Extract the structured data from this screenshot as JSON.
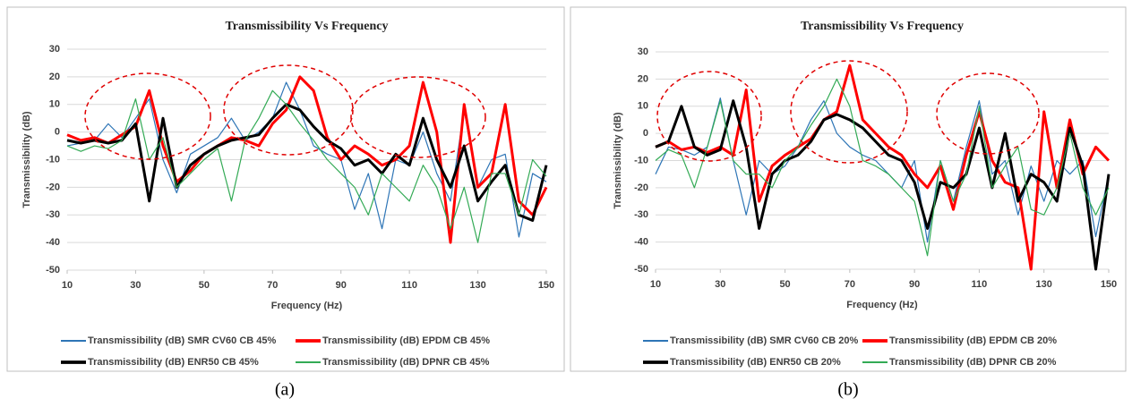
{
  "chart_data": [
    {
      "type": "line",
      "title": "Transmissibility Vs Frequency",
      "xlabel": "Frequency (Hz)",
      "ylabel": "Transmissibility (dB)",
      "caption": "(a)",
      "x": [
        10,
        14,
        18,
        22,
        26,
        30,
        34,
        38,
        42,
        46,
        50,
        54,
        58,
        62,
        66,
        70,
        74,
        78,
        82,
        86,
        90,
        94,
        98,
        102,
        106,
        110,
        114,
        118,
        122,
        126,
        130,
        134,
        138,
        142,
        146,
        150
      ],
      "xlim": [
        10,
        150
      ],
      "xticks": [
        10,
        30,
        50,
        70,
        90,
        110,
        130,
        150
      ],
      "ylim": [
        -50,
        30
      ],
      "yticks": [
        -50,
        -40,
        -30,
        -20,
        -10,
        0,
        10,
        20,
        30
      ],
      "grid": true,
      "series": [
        {
          "name": "Transmissibility (dB) SMR CV60 CB 45%",
          "color": "#2e75b6",
          "values": [
            -5,
            -4,
            -3,
            3,
            -2,
            5,
            12,
            -10,
            -22,
            -8,
            -5,
            -2,
            5,
            -3,
            0,
            5,
            18,
            8,
            -5,
            -8,
            -10,
            -28,
            -15,
            -35,
            -10,
            -12,
            0,
            -15,
            -25,
            8,
            -20,
            -10,
            -8,
            -38,
            -15,
            -18
          ]
        },
        {
          "name": "Transmissibility (dB) EPDM CB 45%",
          "color": "#ff0000",
          "values": [
            -1,
            -3,
            -2,
            -4,
            -1,
            2,
            15,
            -5,
            -18,
            -14,
            -8,
            -5,
            -2,
            -3,
            -5,
            3,
            8,
            20,
            15,
            -2,
            -10,
            -5,
            -8,
            -12,
            -10,
            -5,
            18,
            0,
            -40,
            10,
            -20,
            -15,
            10,
            -25,
            -30,
            -20
          ]
        },
        {
          "name": "Transmissibility (dB) ENR50 CB 45%",
          "color": "#000000",
          "values": [
            -3,
            -4,
            -3,
            -4,
            -3,
            3,
            -25,
            5,
            -20,
            -12,
            -8,
            -5,
            -3,
            -2,
            -1,
            5,
            10,
            8,
            2,
            -3,
            -6,
            -12,
            -10,
            -15,
            -8,
            -12,
            5,
            -10,
            -20,
            -5,
            -25,
            -18,
            -12,
            -30,
            -32,
            -12
          ]
        },
        {
          "name": "Transmissibility (dB) DPNR CB 45%",
          "color": "#33aa55",
          "values": [
            -5,
            -7,
            -5,
            -6,
            -3,
            12,
            -10,
            -2,
            -20,
            -15,
            -10,
            -6,
            -25,
            -3,
            5,
            15,
            10,
            3,
            -3,
            -10,
            -15,
            -20,
            -30,
            -15,
            -20,
            -25,
            -12,
            -20,
            -35,
            -20,
            -40,
            -15,
            -15,
            -30,
            -10,
            -16
          ]
        }
      ]
    },
    {
      "type": "line",
      "title": "Transmissibility Vs Frequency",
      "xlabel": "Frequency (Hz)",
      "ylabel": "Transmissibility (dB)",
      "caption": "(b)",
      "x": [
        10,
        14,
        18,
        22,
        26,
        30,
        34,
        38,
        42,
        46,
        50,
        54,
        58,
        62,
        66,
        70,
        74,
        78,
        82,
        86,
        90,
        94,
        98,
        102,
        106,
        110,
        114,
        118,
        122,
        126,
        130,
        134,
        138,
        142,
        146,
        150
      ],
      "xlim": [
        10,
        150
      ],
      "xticks": [
        10,
        30,
        50,
        70,
        90,
        110,
        130,
        150
      ],
      "ylim": [
        -50,
        30
      ],
      "yticks": [
        -50,
        -40,
        -30,
        -20,
        -10,
        0,
        10,
        20,
        30
      ],
      "grid": true,
      "series": [
        {
          "name": "Transmissibility (dB) SMR CV60 CB 20%",
          "color": "#2e75b6",
          "values": [
            -15,
            -5,
            -6,
            -8,
            -5,
            13,
            -10,
            -30,
            -10,
            -15,
            -12,
            -5,
            5,
            12,
            0,
            -5,
            -8,
            -10,
            -15,
            -20,
            -10,
            -40,
            -10,
            -25,
            -5,
            12,
            -15,
            -10,
            -30,
            -12,
            -25,
            -10,
            -15,
            -10,
            -38,
            -15
          ]
        },
        {
          "name": "Transmissibility (dB) EPDM CB 20%",
          "color": "#ff0000",
          "values": [
            -5,
            -3,
            -6,
            -5,
            -7,
            -5,
            -8,
            16,
            -25,
            -12,
            -8,
            -5,
            -2,
            5,
            8,
            25,
            5,
            0,
            -5,
            -8,
            -15,
            -20,
            -12,
            -28,
            -8,
            8,
            -10,
            -18,
            -20,
            -50,
            8,
            -20,
            5,
            -15,
            -5,
            -10
          ]
        },
        {
          "name": "Transmissibility (dB) ENR50 CB 20%",
          "color": "#000000",
          "values": [
            -5,
            -3,
            10,
            -5,
            -8,
            -6,
            12,
            -5,
            -35,
            -15,
            -10,
            -8,
            -3,
            5,
            7,
            5,
            2,
            -3,
            -8,
            -10,
            -18,
            -35,
            -18,
            -20,
            -15,
            2,
            -20,
            0,
            -25,
            -15,
            -18,
            -25,
            2,
            -12,
            -50,
            -15
          ]
        },
        {
          "name": "Transmissibility (dB) DPNR CB 20%",
          "color": "#33aa55",
          "values": [
            -10,
            -6,
            -8,
            -20,
            -5,
            12,
            -10,
            -15,
            -15,
            -20,
            -10,
            -5,
            3,
            10,
            20,
            10,
            -10,
            -12,
            -15,
            -20,
            -25,
            -45,
            -10,
            -25,
            -15,
            10,
            -20,
            -12,
            -5,
            -28,
            -30,
            -20,
            0,
            -20,
            -30,
            -20
          ]
        }
      ]
    }
  ]
}
